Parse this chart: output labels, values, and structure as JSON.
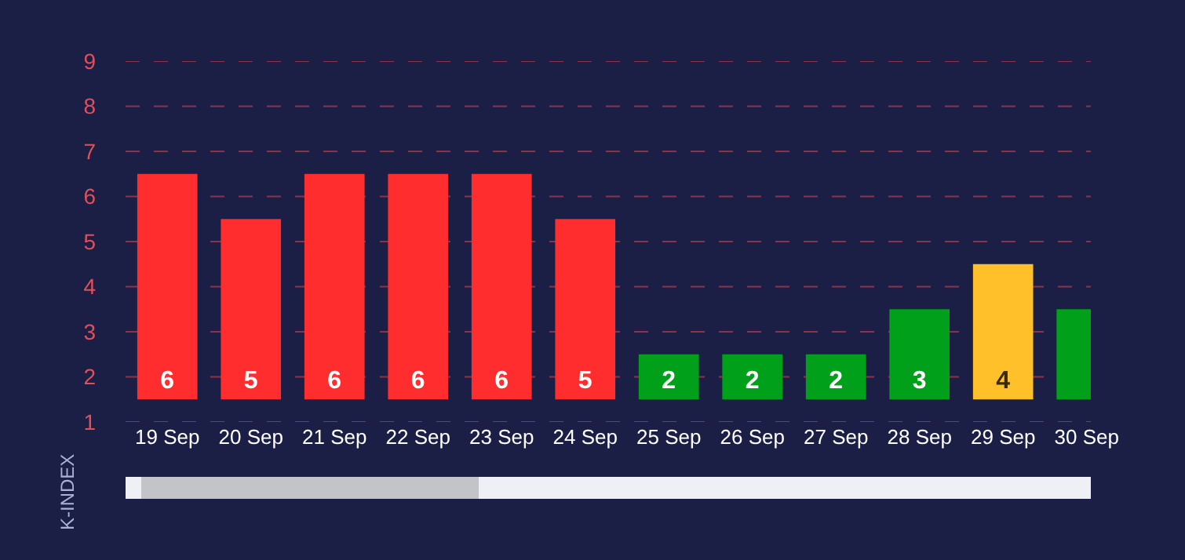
{
  "chart_data": {
    "type": "bar",
    "ylabel": "K-INDEX",
    "categories": [
      "19 Sep",
      "20 Sep",
      "21 Sep",
      "22 Sep",
      "23 Sep",
      "24 Sep",
      "25 Sep",
      "26 Sep",
      "27 Sep",
      "28 Sep",
      "29 Sep",
      "30 Sep"
    ],
    "base": [
      1.5,
      1.5,
      1.5,
      1.5,
      1.5,
      1.5,
      1.5,
      1.5,
      1.5,
      1.5,
      1.5,
      1.5
    ],
    "values": [
      5,
      4,
      5,
      5,
      5,
      4,
      1,
      1,
      1,
      2,
      3,
      2
    ],
    "value_labels": [
      "6",
      "5",
      "6",
      "6",
      "6",
      "5",
      "2",
      "2",
      "2",
      "3",
      "4",
      null
    ],
    "colors": [
      "#ff2d2d",
      "#ff2d2d",
      "#ff2d2d",
      "#ff2d2d",
      "#ff2d2d",
      "#ff2d2d",
      "#00a01a",
      "#00a01a",
      "#00a01a",
      "#00a01a",
      "#ffc02a",
      "#00a01a"
    ],
    "ylim": [
      1,
      9
    ],
    "yticks": [
      1,
      2,
      3,
      4,
      5,
      6,
      7,
      8,
      9
    ],
    "grid": "y"
  }
}
